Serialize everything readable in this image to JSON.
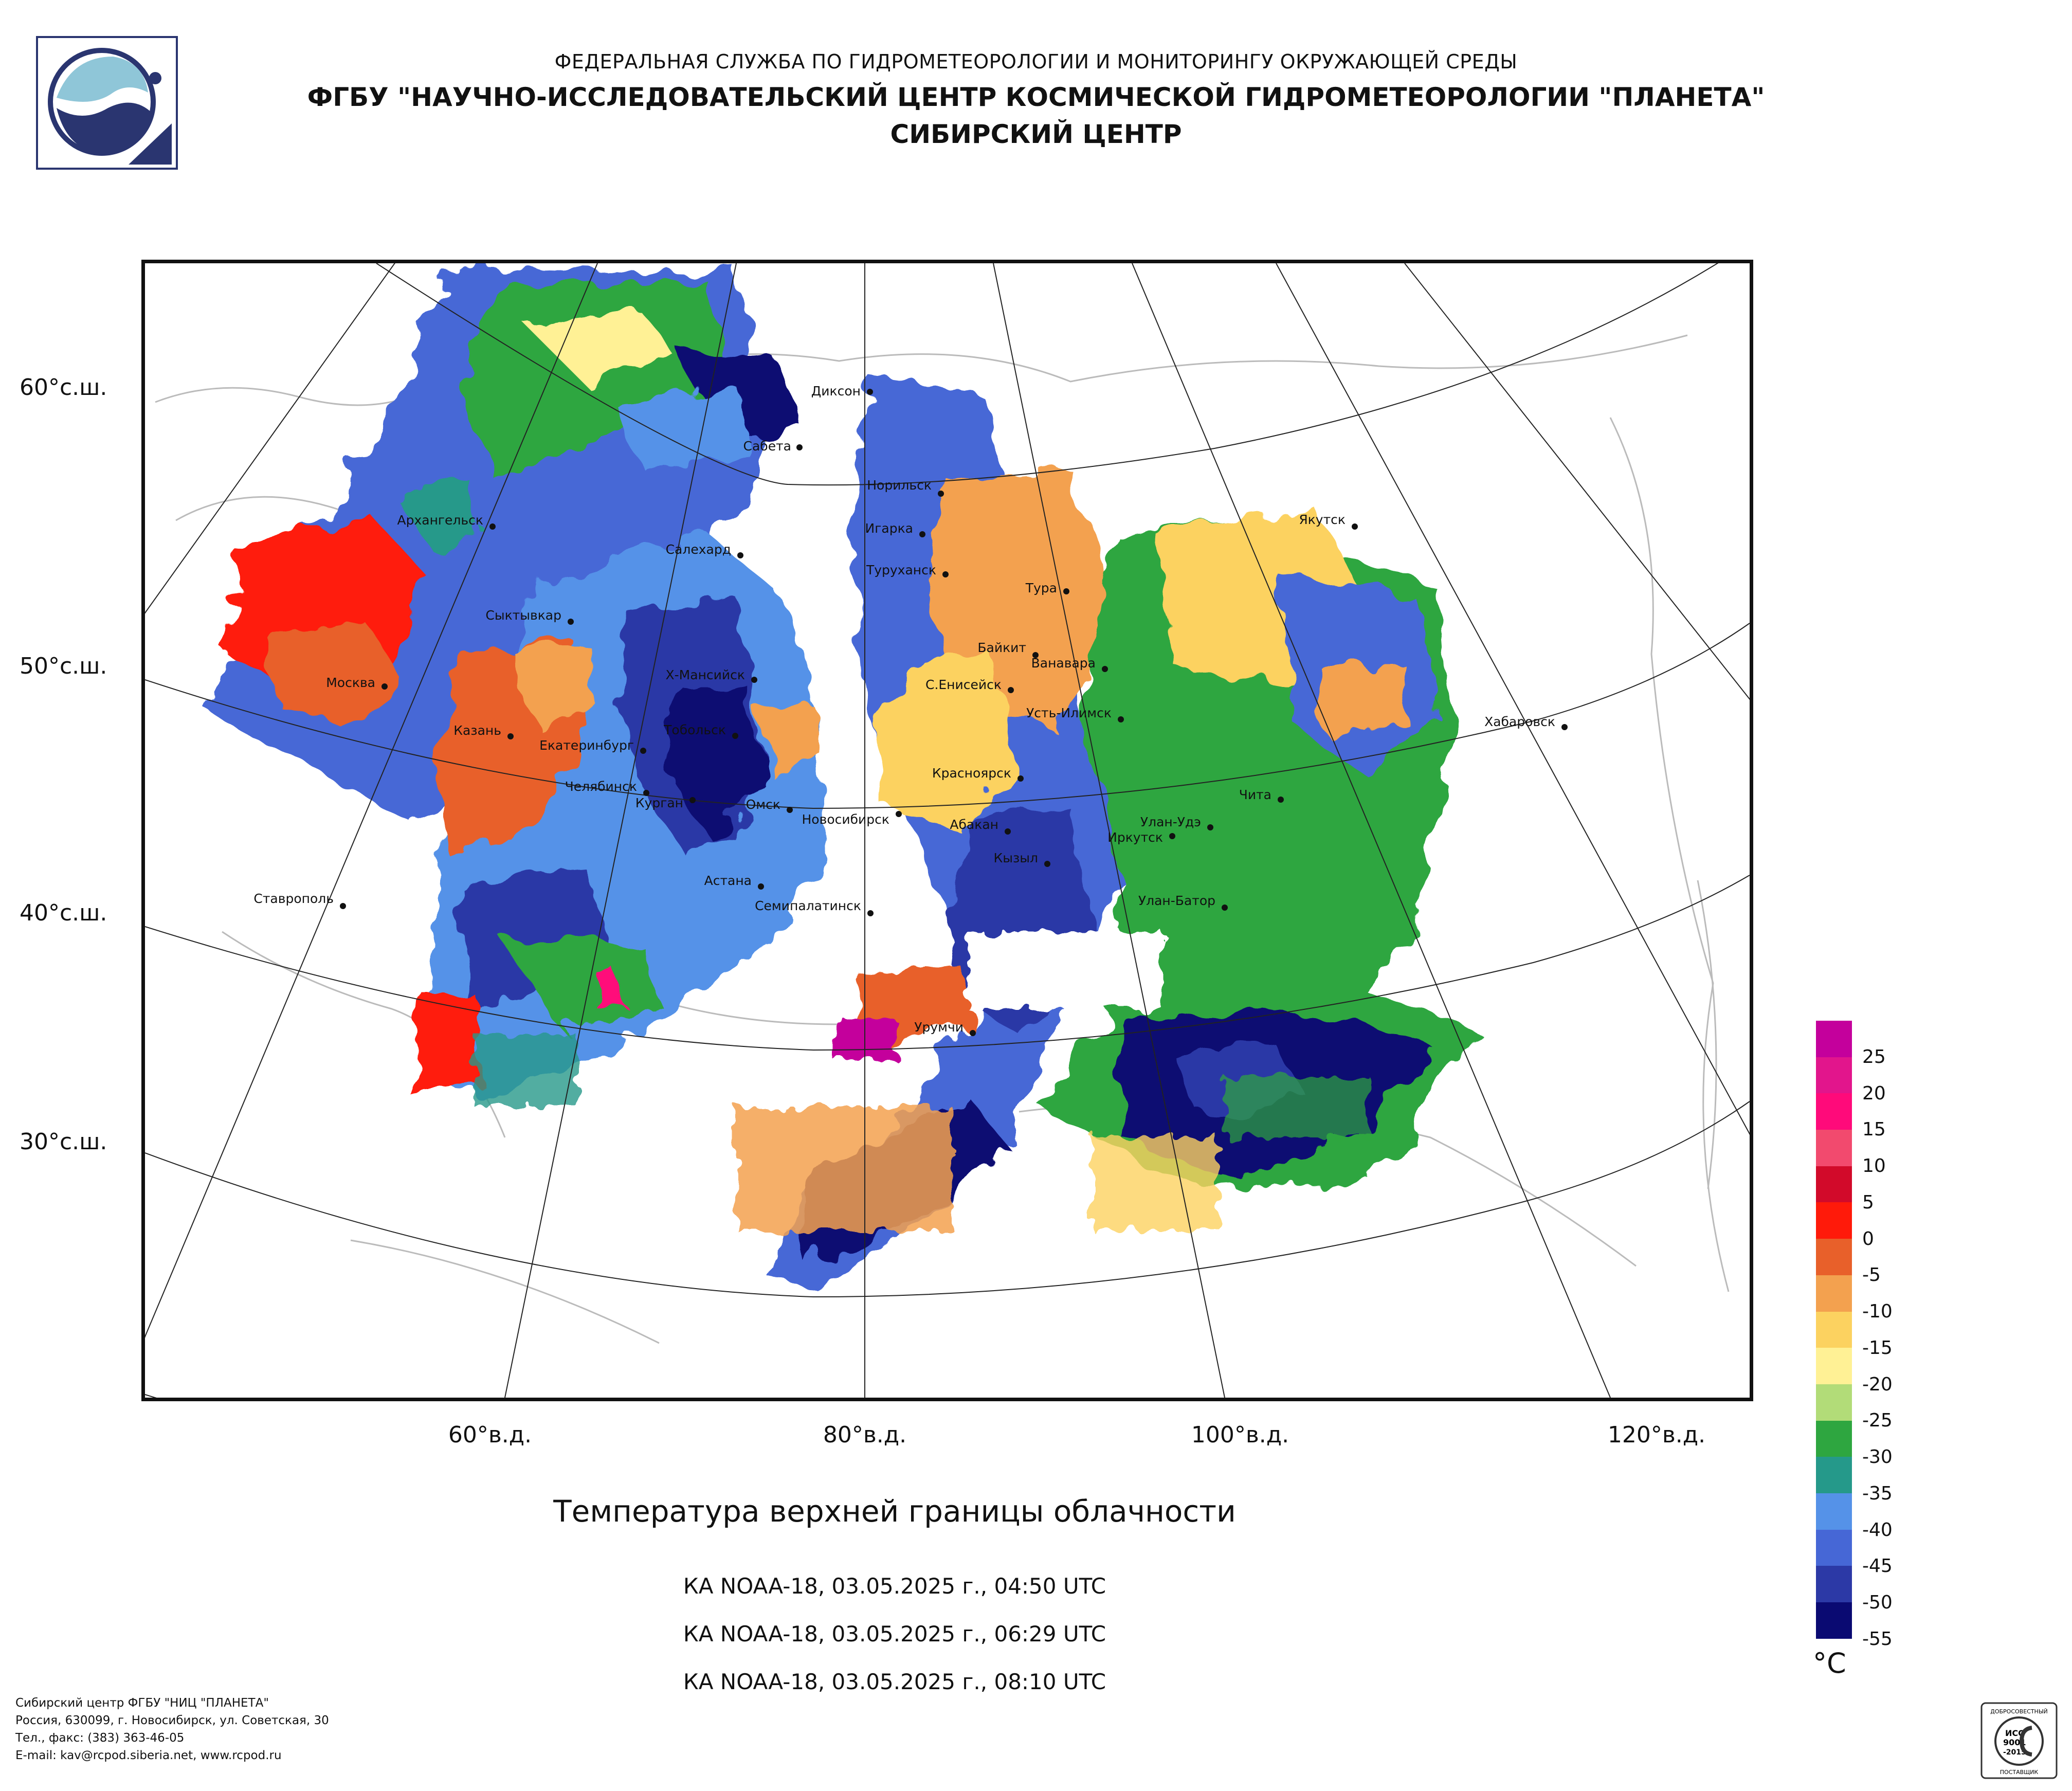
{
  "header": {
    "line1": "ФЕДЕРАЛЬНАЯ СЛУЖБА ПО ГИДРОМЕТЕОРОЛОГИИ И МОНИТОРИНГУ ОКРУЖАЮЩЕЙ СРЕДЫ",
    "line2": "ФГБУ \"НАУЧНО-ИССЛЕДОВАТЕЛЬСКИЙ ЦЕНТР КОСМИЧЕСКОЙ ГИДРОМЕТЕОРОЛОГИИ \"ПЛАНЕТА\"",
    "line3": "СИБИРСКИЙ ЦЕНТР"
  },
  "latitude_labels": [
    "60°с.ш.",
    "50°с.ш.",
    "40°с.ш.",
    "30°с.ш."
  ],
  "longitude_labels": [
    "60°в.д.",
    "80°в.д.",
    "100°в.д.",
    "120°в.д."
  ],
  "cities": [
    "Диксон",
    "Сабета",
    "Норильск",
    "Игарка",
    "Салехард",
    "Архангельск",
    "Туруханск",
    "Тура",
    "Якутск",
    "Сыктывкар",
    "Байкит",
    "Ванавара",
    "Москва",
    "Х-Мансийск",
    "С.Енисейск",
    "Усть-Илимск",
    "Казань",
    "Тобольск",
    "Екатеринбург",
    "Хабаровск",
    "Красноярск",
    "Челябинск",
    "Курган",
    "Омск",
    "Чита",
    "Новосибирск",
    "Абакан",
    "Улан-Удэ",
    "Иркутск",
    "Кызыл",
    "Астана",
    "Ставрополь",
    "Семипалатинск",
    "Улан-Батор",
    "Урумчи"
  ],
  "legend": {
    "unit": "°C",
    "ticks": [
      "25",
      "20",
      "15",
      "10",
      "5",
      "0",
      "-5",
      "-10",
      "-15",
      "-20",
      "-25",
      "-30",
      "-35",
      "-40",
      "-45",
      "-50",
      "-55"
    ],
    "colors": [
      "#c4009c",
      "#e2158c",
      "#ff0a7a",
      "#f24a6e",
      "#d20a2a",
      "#ff1a0a",
      "#e8602a",
      "#f3a14f",
      "#fcd260",
      "#fff195",
      "#b2dc78",
      "#2ea640",
      "#25998a",
      "#5592e8",
      "#4667d6",
      "#2c39a6",
      "#0a0a72"
    ]
  },
  "title": "Температура верхней границы облачности",
  "passes": [
    "КА NOAA-18, 03.05.2025 г., 04:50 UTC",
    "КА NOAA-18, 03.05.2025 г., 06:29 UTC",
    "КА NOAA-18, 03.05.2025 г., 08:10 UTC"
  ],
  "footer": {
    "line1": "Сибирский центр ФГБУ \"НИЦ \"ПЛАНЕТА\"",
    "line2": "Россия, 630099, г. Новосибирск, ул. Советская, 30",
    "line3": "Тел., факс: (383) 363-46-05",
    "line4": "E-mail: kav@rcpod.siberia.net, www.rcpod.ru"
  },
  "iso_badge": {
    "top": "ДОБРОСОВЕСТНЫЙ",
    "code1": "ИСО",
    "code2": "9001",
    "code3": "-2015",
    "bottom": "ПОСТАВЩИК"
  }
}
